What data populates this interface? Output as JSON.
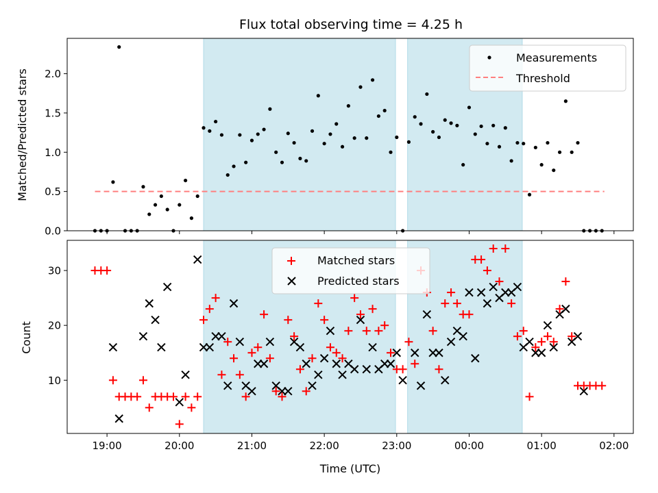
{
  "figure": {
    "title": "Flux total observing time = 4.25 h",
    "xlabel": "Time (UTC)",
    "xticks": [
      "19:00",
      "20:00",
      "21:00",
      "22:00",
      "23:00",
      "00:00",
      "01:00",
      "02:00"
    ]
  },
  "chart_data": [
    {
      "type": "scatter",
      "ylabel": "Matched/Predicted stars",
      "xlim": [
        "18:27",
        "02:16"
      ],
      "ylim": [
        0,
        2.45
      ],
      "yticks": [
        "0.0",
        "0.5",
        "1.0",
        "1.5",
        "2.0"
      ],
      "shaded_intervals": [
        [
          "20:20",
          "22:59"
        ],
        [
          "23:09",
          "00:44"
        ]
      ],
      "shade_color": "#add8e6",
      "legend": {
        "placement": "upper right",
        "entries": [
          "Measurements",
          "Threshold"
        ]
      },
      "series": [
        {
          "name": "Measurements",
          "marker": "dot",
          "color": "#000000",
          "points": [
            [
              "18:50",
              0.0
            ],
            [
              "18:55",
              0.0
            ],
            [
              "19:00",
              0.0
            ],
            [
              "19:05",
              0.62
            ],
            [
              "19:10",
              2.34
            ],
            [
              "19:15",
              0.0
            ],
            [
              "19:20",
              0.0
            ],
            [
              "19:25",
              0.0
            ],
            [
              "19:30",
              0.56
            ],
            [
              "19:35",
              0.21
            ],
            [
              "19:40",
              0.33
            ],
            [
              "19:45",
              0.44
            ],
            [
              "19:50",
              0.27
            ],
            [
              "19:55",
              0.0
            ],
            [
              "20:00",
              0.33
            ],
            [
              "20:05",
              0.64
            ],
            [
              "20:10",
              0.16
            ],
            [
              "20:15",
              0.44
            ],
            [
              "20:20",
              1.31
            ],
            [
              "20:25",
              1.27
            ],
            [
              "20:30",
              1.39
            ],
            [
              "20:35",
              1.22
            ],
            [
              "20:40",
              0.71
            ],
            [
              "20:45",
              0.82
            ],
            [
              "20:50",
              1.22
            ],
            [
              "20:55",
              0.87
            ],
            [
              "21:00",
              1.15
            ],
            [
              "21:05",
              1.23
            ],
            [
              "21:10",
              1.29
            ],
            [
              "21:15",
              1.55
            ],
            [
              "21:20",
              1.0
            ],
            [
              "21:25",
              0.87
            ],
            [
              "21:30",
              1.24
            ],
            [
              "21:35",
              1.12
            ],
            [
              "21:40",
              0.92
            ],
            [
              "21:45",
              0.89
            ],
            [
              "21:50",
              1.27
            ],
            [
              "21:55",
              1.72
            ],
            [
              "22:00",
              1.11
            ],
            [
              "22:05",
              1.23
            ],
            [
              "22:10",
              1.36
            ],
            [
              "22:15",
              1.07
            ],
            [
              "22:20",
              1.59
            ],
            [
              "22:25",
              1.18
            ],
            [
              "22:30",
              1.83
            ],
            [
              "22:35",
              1.18
            ],
            [
              "22:40",
              1.92
            ],
            [
              "22:45",
              1.46
            ],
            [
              "22:50",
              1.53
            ],
            [
              "22:55",
              1.0
            ],
            [
              "23:00",
              1.19
            ],
            [
              "23:05",
              0.0
            ],
            [
              "23:10",
              1.13
            ],
            [
              "23:15",
              1.45
            ],
            [
              "23:20",
              1.36
            ],
            [
              "23:25",
              1.74
            ],
            [
              "23:30",
              1.26
            ],
            [
              "23:35",
              1.19
            ],
            [
              "23:40",
              1.41
            ],
            [
              "23:45",
              1.37
            ],
            [
              "23:50",
              1.34
            ],
            [
              "23:55",
              0.84
            ],
            [
              "00:00",
              1.57
            ],
            [
              "00:05",
              1.23
            ],
            [
              "00:10",
              1.33
            ],
            [
              "00:15",
              1.11
            ],
            [
              "00:20",
              1.34
            ],
            [
              "00:25",
              1.07
            ],
            [
              "00:30",
              1.31
            ],
            [
              "00:35",
              0.89
            ],
            [
              "00:40",
              1.12
            ],
            [
              "00:45",
              1.11
            ],
            [
              "00:50",
              0.46
            ],
            [
              "00:55",
              1.06
            ],
            [
              "01:00",
              0.84
            ],
            [
              "01:05",
              1.12
            ],
            [
              "01:10",
              0.77
            ],
            [
              "01:15",
              1.0
            ],
            [
              "01:20",
              1.65
            ],
            [
              "01:25",
              1.0
            ],
            [
              "01:30",
              1.12
            ],
            [
              "01:35",
              0.0
            ],
            [
              "01:40",
              0.0
            ],
            [
              "01:45",
              0.0
            ],
            [
              "01:50",
              0.0
            ]
          ]
        },
        {
          "name": "Threshold",
          "style": "dashed-line",
          "color": "#ff7f7f",
          "points": [
            [
              "18:50",
              0.5
            ],
            [
              "01:52",
              0.5
            ]
          ]
        }
      ]
    },
    {
      "type": "scatter",
      "ylabel": "Count",
      "xlim": [
        "18:27",
        "02:16"
      ],
      "ylim": [
        0.3,
        35.5
      ],
      "yticks": [
        "10",
        "20",
        "30"
      ],
      "shaded_intervals": [
        [
          "20:20",
          "22:59"
        ],
        [
          "23:09",
          "00:44"
        ]
      ],
      "shade_color": "#add8e6",
      "legend": {
        "placement": "upper center",
        "entries": [
          "Matched stars",
          "Predicted stars"
        ]
      },
      "series": [
        {
          "name": "Matched stars",
          "marker": "plus",
          "color": "#ff0000",
          "points": [
            [
              "18:50",
              30
            ],
            [
              "18:55",
              30
            ],
            [
              "19:00",
              30
            ],
            [
              "19:05",
              10
            ],
            [
              "19:10",
              7
            ],
            [
              "19:15",
              7
            ],
            [
              "19:20",
              7
            ],
            [
              "19:25",
              7
            ],
            [
              "19:30",
              10
            ],
            [
              "19:35",
              5
            ],
            [
              "19:40",
              7
            ],
            [
              "19:45",
              7
            ],
            [
              "19:50",
              7
            ],
            [
              "19:55",
              7
            ],
            [
              "20:00",
              2
            ],
            [
              "20:05",
              7
            ],
            [
              "20:10",
              5
            ],
            [
              "20:15",
              7
            ],
            [
              "20:20",
              21
            ],
            [
              "20:25",
              23
            ],
            [
              "20:30",
              25
            ],
            [
              "20:35",
              11
            ],
            [
              "20:40",
              17
            ],
            [
              "20:45",
              14
            ],
            [
              "20:50",
              11
            ],
            [
              "20:55",
              7
            ],
            [
              "21:00",
              15
            ],
            [
              "21:05",
              16
            ],
            [
              "21:10",
              22
            ],
            [
              "21:15",
              14
            ],
            [
              "21:20",
              8
            ],
            [
              "21:25",
              7
            ],
            [
              "21:30",
              21
            ],
            [
              "21:35",
              18
            ],
            [
              "21:40",
              12
            ],
            [
              "21:45",
              8
            ],
            [
              "21:50",
              14
            ],
            [
              "21:55",
              24
            ],
            [
              "22:00",
              21
            ],
            [
              "22:05",
              16
            ],
            [
              "22:10",
              15
            ],
            [
              "22:15",
              14
            ],
            [
              "22:20",
              19
            ],
            [
              "22:25",
              25
            ],
            [
              "22:30",
              22
            ],
            [
              "22:35",
              19
            ],
            [
              "22:40",
              23
            ],
            [
              "22:45",
              19
            ],
            [
              "22:50",
              20
            ],
            [
              "22:55",
              15
            ],
            [
              "23:00",
              12
            ],
            [
              "23:05",
              12
            ],
            [
              "23:10",
              17
            ],
            [
              "23:15",
              13
            ],
            [
              "23:20",
              30
            ],
            [
              "23:25",
              26
            ],
            [
              "23:30",
              19
            ],
            [
              "23:35",
              12
            ],
            [
              "23:40",
              24
            ],
            [
              "23:45",
              26
            ],
            [
              "23:50",
              24
            ],
            [
              "23:55",
              22
            ],
            [
              "00:00",
              22
            ],
            [
              "00:05",
              32
            ],
            [
              "00:10",
              32
            ],
            [
              "00:15",
              30
            ],
            [
              "00:20",
              34
            ],
            [
              "00:25",
              28
            ],
            [
              "00:30",
              34
            ],
            [
              "00:35",
              24
            ],
            [
              "00:40",
              18
            ],
            [
              "00:45",
              19
            ],
            [
              "00:50",
              7
            ],
            [
              "00:55",
              16
            ],
            [
              "01:00",
              17
            ],
            [
              "01:05",
              18
            ],
            [
              "01:10",
              17
            ],
            [
              "01:15",
              23
            ],
            [
              "01:20",
              28
            ],
            [
              "01:25",
              18
            ],
            [
              "01:30",
              9
            ],
            [
              "01:35",
              9
            ],
            [
              "01:40",
              9
            ],
            [
              "01:45",
              9
            ],
            [
              "01:50",
              9
            ]
          ]
        },
        {
          "name": "Predicted stars",
          "marker": "x",
          "color": "#000000",
          "points": [
            [
              "19:05",
              16
            ],
            [
              "19:10",
              3
            ],
            [
              "19:30",
              18
            ],
            [
              "19:35",
              24
            ],
            [
              "19:40",
              21
            ],
            [
              "19:45",
              16
            ],
            [
              "19:50",
              27
            ],
            [
              "20:00",
              6
            ],
            [
              "20:05",
              11
            ],
            [
              "20:15",
              32
            ],
            [
              "20:20",
              16
            ],
            [
              "20:25",
              16
            ],
            [
              "20:30",
              18
            ],
            [
              "20:35",
              18
            ],
            [
              "20:40",
              9
            ],
            [
              "20:45",
              24
            ],
            [
              "20:50",
              17
            ],
            [
              "20:55",
              9
            ],
            [
              "21:00",
              8
            ],
            [
              "21:05",
              13
            ],
            [
              "21:10",
              13
            ],
            [
              "21:15",
              17
            ],
            [
              "21:20",
              9
            ],
            [
              "21:25",
              8
            ],
            [
              "21:30",
              8
            ],
            [
              "21:35",
              17
            ],
            [
              "21:40",
              16
            ],
            [
              "21:45",
              13
            ],
            [
              "21:50",
              9
            ],
            [
              "21:55",
              11
            ],
            [
              "22:00",
              14
            ],
            [
              "22:05",
              19
            ],
            [
              "22:10",
              13
            ],
            [
              "22:15",
              11
            ],
            [
              "22:20",
              13
            ],
            [
              "22:25",
              12
            ],
            [
              "22:30",
              21
            ],
            [
              "22:35",
              12
            ],
            [
              "22:40",
              16
            ],
            [
              "22:45",
              12
            ],
            [
              "22:50",
              13
            ],
            [
              "22:55",
              13
            ],
            [
              "23:00",
              15
            ],
            [
              "23:05",
              10
            ],
            [
              "23:15",
              15
            ],
            [
              "23:20",
              9
            ],
            [
              "23:25",
              22
            ],
            [
              "23:30",
              15
            ],
            [
              "23:35",
              15
            ],
            [
              "23:40",
              10
            ],
            [
              "23:45",
              17
            ],
            [
              "23:50",
              19
            ],
            [
              "23:55",
              18
            ],
            [
              "00:00",
              26
            ],
            [
              "00:05",
              14
            ],
            [
              "00:10",
              26
            ],
            [
              "00:15",
              24
            ],
            [
              "00:20",
              27
            ],
            [
              "00:25",
              25
            ],
            [
              "00:30",
              26
            ],
            [
              "00:35",
              26
            ],
            [
              "00:40",
              27
            ],
            [
              "00:45",
              16
            ],
            [
              "00:50",
              17
            ],
            [
              "00:55",
              15
            ],
            [
              "01:00",
              15
            ],
            [
              "01:05",
              20
            ],
            [
              "01:10",
              16
            ],
            [
              "01:15",
              22
            ],
            [
              "01:20",
              23
            ],
            [
              "01:25",
              17
            ],
            [
              "01:30",
              18
            ],
            [
              "01:35",
              8
            ]
          ]
        }
      ]
    }
  ]
}
